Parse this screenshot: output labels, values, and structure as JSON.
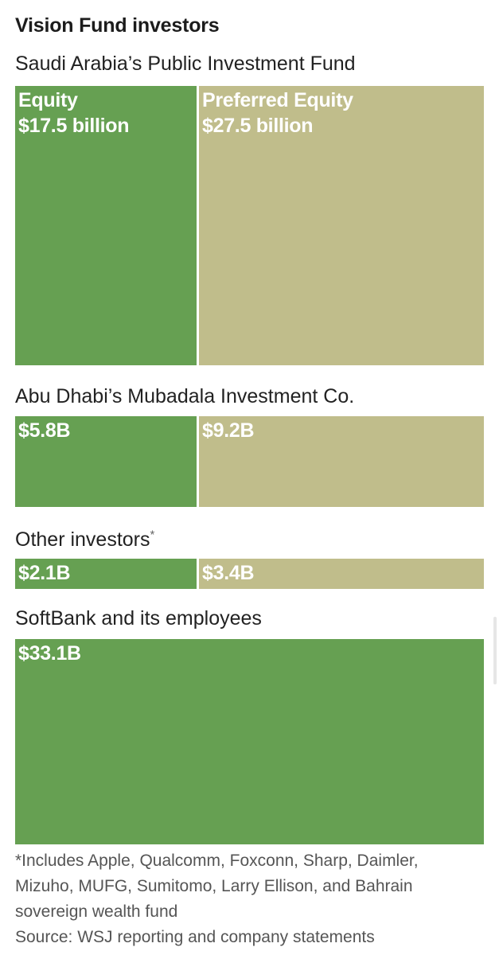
{
  "title": "Vision Fund investors",
  "colors": {
    "equity": "#66a052",
    "preferred": "#c0bd8b"
  },
  "chart_data": {
    "type": "treemap",
    "title": "Vision Fund investors",
    "unit": "$ billion",
    "series_names": [
      "Equity",
      "Preferred Equity"
    ],
    "groups": [
      {
        "name": "Saudi Arabia’s Public Investment Fund",
        "footnote_mark": "",
        "values": [
          {
            "series": "Equity",
            "value": 17.5,
            "label_line1": "Equity",
            "label_line2": "$17.5 billion"
          },
          {
            "series": "Preferred Equity",
            "value": 27.5,
            "label_line1": "Preferred Equity",
            "label_line2": "$27.5 billion"
          }
        ]
      },
      {
        "name": "Abu Dhabi’s Mubadala Investment Co.",
        "footnote_mark": "",
        "values": [
          {
            "series": "Equity",
            "value": 5.8,
            "label_line1": "$5.8B",
            "label_line2": ""
          },
          {
            "series": "Preferred Equity",
            "value": 9.2,
            "label_line1": "$9.2B",
            "label_line2": ""
          }
        ]
      },
      {
        "name": "Other investors",
        "footnote_mark": "*",
        "values": [
          {
            "series": "Equity",
            "value": 2.1,
            "label_line1": "$2.1B",
            "label_line2": ""
          },
          {
            "series": "Preferred Equity",
            "value": 3.4,
            "label_line1": "$3.4B",
            "label_line2": ""
          }
        ]
      },
      {
        "name": "SoftBank and its employees",
        "footnote_mark": "",
        "values": [
          {
            "series": "Equity",
            "value": 33.1,
            "label_line1": "$33.1B",
            "label_line2": ""
          }
        ]
      }
    ]
  },
  "footnote": {
    "lines": [
      "*Includes Apple, Qualcomm, Foxconn, Sharp, Daimler,",
      "Mizuho, MUFG, Sumitomo, Larry Ellison, and Bahrain",
      "sovereign wealth fund"
    ],
    "source": "Source: WSJ reporting and company statements"
  }
}
